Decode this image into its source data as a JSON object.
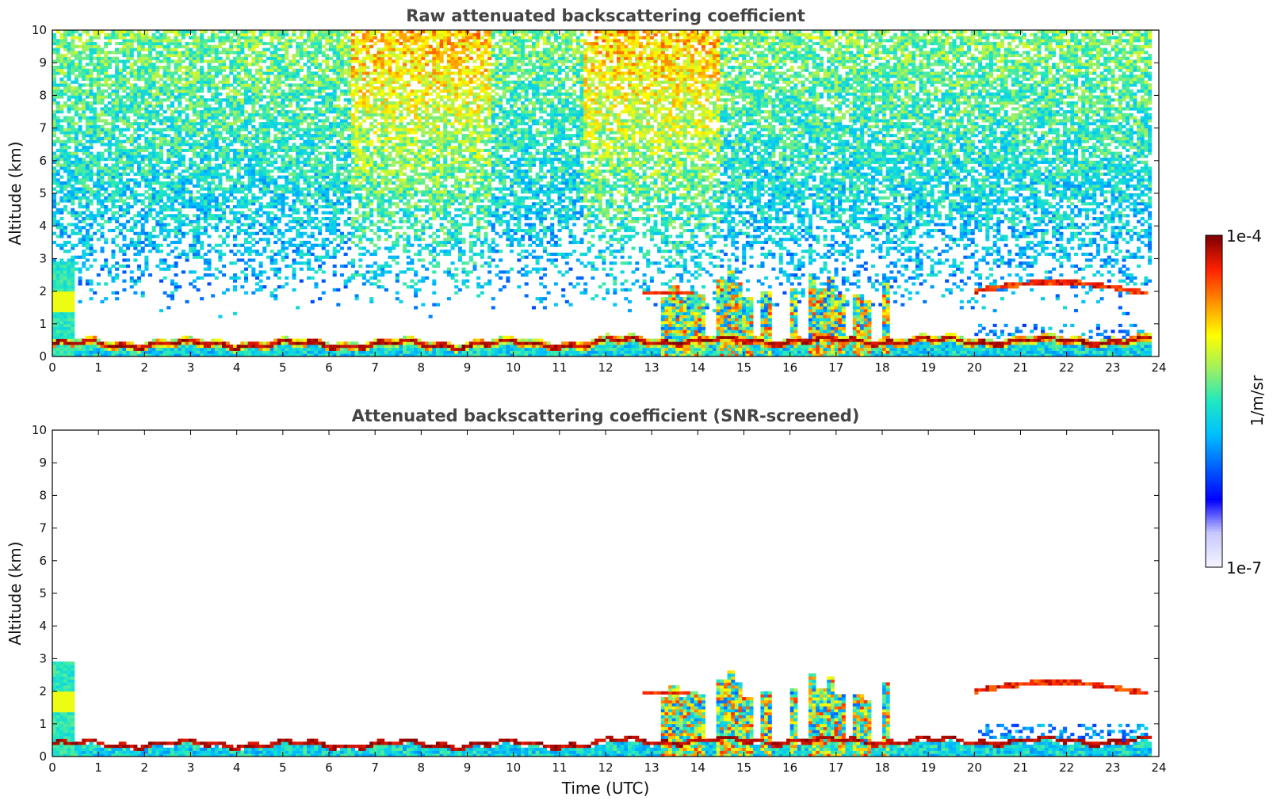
{
  "chart_data": [
    {
      "type": "heatmap",
      "title": "Raw attenuated backscattering coefficient",
      "xlabel": "",
      "ylabel": "Altitude (km)",
      "xlim": [
        0,
        24
      ],
      "ylim": [
        0,
        10
      ],
      "xticks": [
        "0",
        "1",
        "2",
        "3",
        "4",
        "5",
        "6",
        "7",
        "8",
        "9",
        "10",
        "11",
        "12",
        "13",
        "14",
        "15",
        "16",
        "17",
        "18",
        "19",
        "20",
        "21",
        "22",
        "23",
        "24"
      ],
      "yticks": [
        "0",
        "1",
        "2",
        "3",
        "4",
        "5",
        "6",
        "7",
        "8",
        "9",
        "10"
      ],
      "features": [
        {
          "name": "boundary-layer-top",
          "time_range": [
            0.5,
            23.8
          ],
          "altitude_km": [
            0.25,
            0.6
          ],
          "level": "high"
        },
        {
          "name": "near-surface-aerosol",
          "time_range": [
            0,
            23.8
          ],
          "altitude_km": [
            0,
            0.4
          ],
          "level": "medium"
        },
        {
          "name": "early-aerosol-column",
          "time_range": [
            0,
            0.5
          ],
          "altitude_km": [
            0,
            3.0
          ],
          "level": "medium"
        },
        {
          "name": "cloud-layer-13h",
          "time_range": [
            12.8,
            13.8
          ],
          "altitude_km": [
            1.9,
            2.05
          ],
          "level": "high"
        },
        {
          "name": "cloud-layer-21h",
          "time_range": [
            20.0,
            23.8
          ],
          "altitude_km": [
            1.9,
            2.3
          ],
          "level": "high"
        },
        {
          "name": "convective-plumes",
          "time_range": [
            13.0,
            18.5
          ],
          "altitude_km": [
            0,
            2.8
          ],
          "level": "mixed"
        },
        {
          "name": "noise-background",
          "time_range": [
            0,
            24
          ],
          "altitude_km": [
            2.0,
            10.0
          ],
          "level": "noise"
        }
      ]
    },
    {
      "type": "heatmap",
      "title": "Attenuated backscattering coefficient (SNR-screened)",
      "xlabel": "Time (UTC)",
      "ylabel": "Altitude (km)",
      "xlim": [
        0,
        24
      ],
      "ylim": [
        0,
        10
      ],
      "xticks": [
        "0",
        "1",
        "2",
        "3",
        "4",
        "5",
        "6",
        "7",
        "8",
        "9",
        "10",
        "11",
        "12",
        "13",
        "14",
        "15",
        "16",
        "17",
        "18",
        "19",
        "20",
        "21",
        "22",
        "23",
        "24"
      ],
      "yticks": [
        "0",
        "1",
        "2",
        "3",
        "4",
        "5",
        "6",
        "7",
        "8",
        "9",
        "10"
      ],
      "features": [
        {
          "name": "boundary-layer-top",
          "time_range": [
            0.5,
            23.8
          ],
          "altitude_km": [
            0.25,
            0.6
          ],
          "level": "high"
        },
        {
          "name": "near-surface-aerosol",
          "time_range": [
            0,
            23.8
          ],
          "altitude_km": [
            0,
            0.4
          ],
          "level": "medium"
        },
        {
          "name": "early-aerosol-column",
          "time_range": [
            0,
            0.5
          ],
          "altitude_km": [
            0,
            3.0
          ],
          "level": "medium"
        },
        {
          "name": "cloud-layer-13h",
          "time_range": [
            12.8,
            13.8
          ],
          "altitude_km": [
            1.9,
            2.05
          ],
          "level": "high"
        },
        {
          "name": "cloud-layer-21h",
          "time_range": [
            20.0,
            23.8
          ],
          "altitude_km": [
            1.9,
            2.3
          ],
          "level": "high"
        },
        {
          "name": "convective-plumes",
          "time_range": [
            13.0,
            18.5
          ],
          "altitude_km": [
            0,
            2.8
          ],
          "level": "mixed"
        }
      ]
    }
  ],
  "colorbar": {
    "max_label": "1e-4",
    "min_label": "1e-7",
    "unit_label": "1/m/sr",
    "colors": [
      "#f3f3ff",
      "#c8c8ff",
      "#0000ff",
      "#0060ff",
      "#00c0ff",
      "#20e8c0",
      "#a0f060",
      "#ffff00",
      "#ff9000",
      "#ff2000",
      "#800000"
    ]
  }
}
